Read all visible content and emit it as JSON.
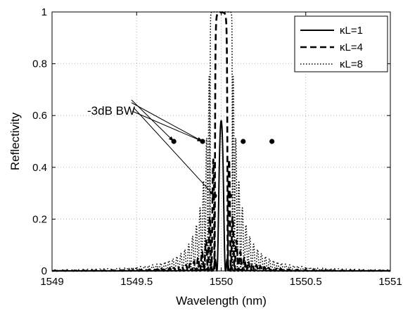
{
  "chart_data": {
    "type": "line",
    "title": "",
    "xlabel": "Wavelength (nm)",
    "ylabel": "Reflectivity",
    "xlim": [
      1549,
      1551
    ],
    "ylim": [
      0,
      1
    ],
    "xticks": [
      1549,
      1549.5,
      1550,
      1550.5,
      1551
    ],
    "xtick_labels": [
      "1549",
      "1549.5",
      "1550",
      "1550.5",
      "1551"
    ],
    "yticks": [
      0,
      0.2,
      0.4,
      0.6,
      0.8,
      1
    ],
    "ytick_labels": [
      "0",
      "0.2",
      "0.4",
      "0.6",
      "0.8",
      "1"
    ],
    "grid": true,
    "legend_position": "top-right",
    "bragg_wavelength": 1550,
    "series": [
      {
        "name": "κL=1",
        "kappaL": 1,
        "style": "solid",
        "peak": 0.58,
        "bw_points": [
          [
            1549.96,
            0.29
          ],
          [
            1550.05,
            0.29
          ]
        ]
      },
      {
        "name": "κL=4",
        "kappaL": 4,
        "style": "dashed",
        "peak": 0.9987,
        "bw_points": [
          [
            1549.89,
            0.5
          ],
          [
            1550.13,
            0.5
          ]
        ]
      },
      {
        "name": "κL=8",
        "kappaL": 8,
        "style": "dotted",
        "peak": 1.0,
        "bw_points": [
          [
            1549.72,
            0.5
          ],
          [
            1550.3,
            0.5
          ]
        ]
      }
    ],
    "annotation": {
      "text": "-3dB BW",
      "targets": [
        [
          1549.72,
          0.5
        ],
        [
          1549.89,
          0.5
        ],
        [
          1549.96,
          0.29
        ],
        [
          1549.89,
          0.5
        ]
      ]
    },
    "colors": {
      "line": "#000000",
      "grid": "#b0b0b0",
      "background": "#ffffff"
    }
  }
}
